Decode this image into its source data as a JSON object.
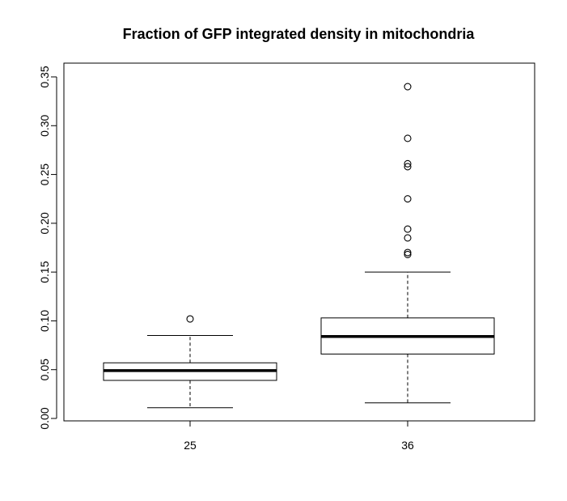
{
  "chart_data": {
    "type": "boxplot",
    "title": "Fraction of GFP integrated density in mitochondria",
    "xlabel": "",
    "ylabel": "",
    "categories": [
      "25",
      "36"
    ],
    "ylim": [
      0,
      0.35
    ],
    "yticks": [
      0.0,
      0.05,
      0.1,
      0.15,
      0.2,
      0.25,
      0.3,
      0.35
    ],
    "ytick_labels": [
      "0.00",
      "0.05",
      "0.10",
      "0.15",
      "0.20",
      "0.25",
      "0.30",
      "0.35"
    ],
    "boxes": [
      {
        "category": "25",
        "whisker_low": 0.011,
        "q1": 0.039,
        "median": 0.049,
        "q3": 0.057,
        "whisker_high": 0.085,
        "outliers": [
          0.102
        ]
      },
      {
        "category": "36",
        "whisker_low": 0.016,
        "q1": 0.066,
        "median": 0.084,
        "q3": 0.103,
        "whisker_high": 0.15,
        "outliers": [
          0.168,
          0.17,
          0.185,
          0.194,
          0.225,
          0.258,
          0.261,
          0.287,
          0.34
        ]
      }
    ],
    "grid": false,
    "legend": "none"
  }
}
